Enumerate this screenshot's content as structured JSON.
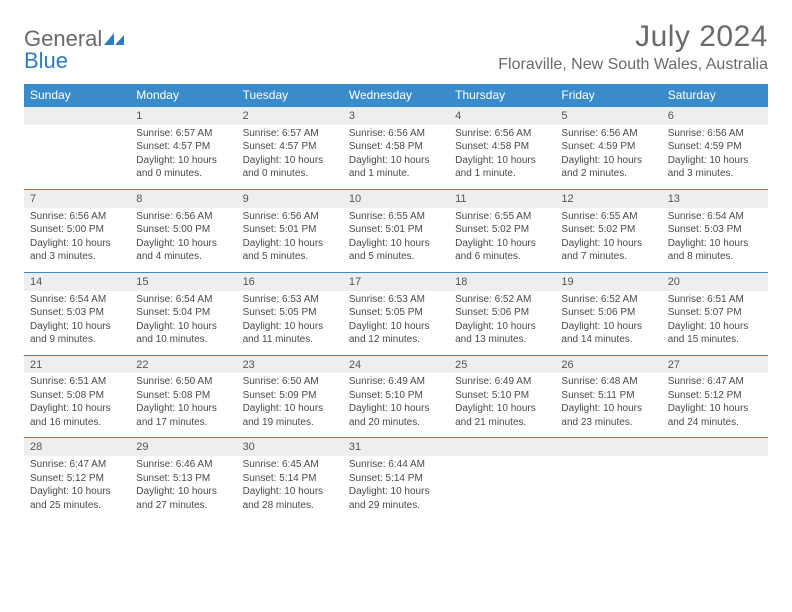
{
  "logo": {
    "text1": "General",
    "text2": "Blue"
  },
  "title": "July 2024",
  "location": "Floraville, New South Wales, Australia",
  "headers": [
    "Sunday",
    "Monday",
    "Tuesday",
    "Wednesday",
    "Thursday",
    "Friday",
    "Saturday"
  ],
  "header_bg": "#3a8bc9",
  "header_fg": "#ffffff",
  "daynum_bg": "#eeeeee",
  "border_color": "#3a8bc9",
  "weeks": [
    [
      null,
      {
        "n": "1",
        "sr": "6:57 AM",
        "ss": "4:57 PM",
        "dl": "10 hours and 0 minutes."
      },
      {
        "n": "2",
        "sr": "6:57 AM",
        "ss": "4:57 PM",
        "dl": "10 hours and 0 minutes."
      },
      {
        "n": "3",
        "sr": "6:56 AM",
        "ss": "4:58 PM",
        "dl": "10 hours and 1 minute."
      },
      {
        "n": "4",
        "sr": "6:56 AM",
        "ss": "4:58 PM",
        "dl": "10 hours and 1 minute."
      },
      {
        "n": "5",
        "sr": "6:56 AM",
        "ss": "4:59 PM",
        "dl": "10 hours and 2 minutes."
      },
      {
        "n": "6",
        "sr": "6:56 AM",
        "ss": "4:59 PM",
        "dl": "10 hours and 3 minutes."
      }
    ],
    [
      {
        "n": "7",
        "sr": "6:56 AM",
        "ss": "5:00 PM",
        "dl": "10 hours and 3 minutes."
      },
      {
        "n": "8",
        "sr": "6:56 AM",
        "ss": "5:00 PM",
        "dl": "10 hours and 4 minutes."
      },
      {
        "n": "9",
        "sr": "6:56 AM",
        "ss": "5:01 PM",
        "dl": "10 hours and 5 minutes."
      },
      {
        "n": "10",
        "sr": "6:55 AM",
        "ss": "5:01 PM",
        "dl": "10 hours and 5 minutes."
      },
      {
        "n": "11",
        "sr": "6:55 AM",
        "ss": "5:02 PM",
        "dl": "10 hours and 6 minutes."
      },
      {
        "n": "12",
        "sr": "6:55 AM",
        "ss": "5:02 PM",
        "dl": "10 hours and 7 minutes."
      },
      {
        "n": "13",
        "sr": "6:54 AM",
        "ss": "5:03 PM",
        "dl": "10 hours and 8 minutes."
      }
    ],
    [
      {
        "n": "14",
        "sr": "6:54 AM",
        "ss": "5:03 PM",
        "dl": "10 hours and 9 minutes."
      },
      {
        "n": "15",
        "sr": "6:54 AM",
        "ss": "5:04 PM",
        "dl": "10 hours and 10 minutes."
      },
      {
        "n": "16",
        "sr": "6:53 AM",
        "ss": "5:05 PM",
        "dl": "10 hours and 11 minutes."
      },
      {
        "n": "17",
        "sr": "6:53 AM",
        "ss": "5:05 PM",
        "dl": "10 hours and 12 minutes."
      },
      {
        "n": "18",
        "sr": "6:52 AM",
        "ss": "5:06 PM",
        "dl": "10 hours and 13 minutes."
      },
      {
        "n": "19",
        "sr": "6:52 AM",
        "ss": "5:06 PM",
        "dl": "10 hours and 14 minutes."
      },
      {
        "n": "20",
        "sr": "6:51 AM",
        "ss": "5:07 PM",
        "dl": "10 hours and 15 minutes."
      }
    ],
    [
      {
        "n": "21",
        "sr": "6:51 AM",
        "ss": "5:08 PM",
        "dl": "10 hours and 16 minutes."
      },
      {
        "n": "22",
        "sr": "6:50 AM",
        "ss": "5:08 PM",
        "dl": "10 hours and 17 minutes."
      },
      {
        "n": "23",
        "sr": "6:50 AM",
        "ss": "5:09 PM",
        "dl": "10 hours and 19 minutes."
      },
      {
        "n": "24",
        "sr": "6:49 AM",
        "ss": "5:10 PM",
        "dl": "10 hours and 20 minutes."
      },
      {
        "n": "25",
        "sr": "6:49 AM",
        "ss": "5:10 PM",
        "dl": "10 hours and 21 minutes."
      },
      {
        "n": "26",
        "sr": "6:48 AM",
        "ss": "5:11 PM",
        "dl": "10 hours and 23 minutes."
      },
      {
        "n": "27",
        "sr": "6:47 AM",
        "ss": "5:12 PM",
        "dl": "10 hours and 24 minutes."
      }
    ],
    [
      {
        "n": "28",
        "sr": "6:47 AM",
        "ss": "5:12 PM",
        "dl": "10 hours and 25 minutes."
      },
      {
        "n": "29",
        "sr": "6:46 AM",
        "ss": "5:13 PM",
        "dl": "10 hours and 27 minutes."
      },
      {
        "n": "30",
        "sr": "6:45 AM",
        "ss": "5:14 PM",
        "dl": "10 hours and 28 minutes."
      },
      {
        "n": "31",
        "sr": "6:44 AM",
        "ss": "5:14 PM",
        "dl": "10 hours and 29 minutes."
      },
      null,
      null,
      null
    ]
  ],
  "labels": {
    "sunrise": "Sunrise:",
    "sunset": "Sunset:",
    "daylight": "Daylight:"
  }
}
